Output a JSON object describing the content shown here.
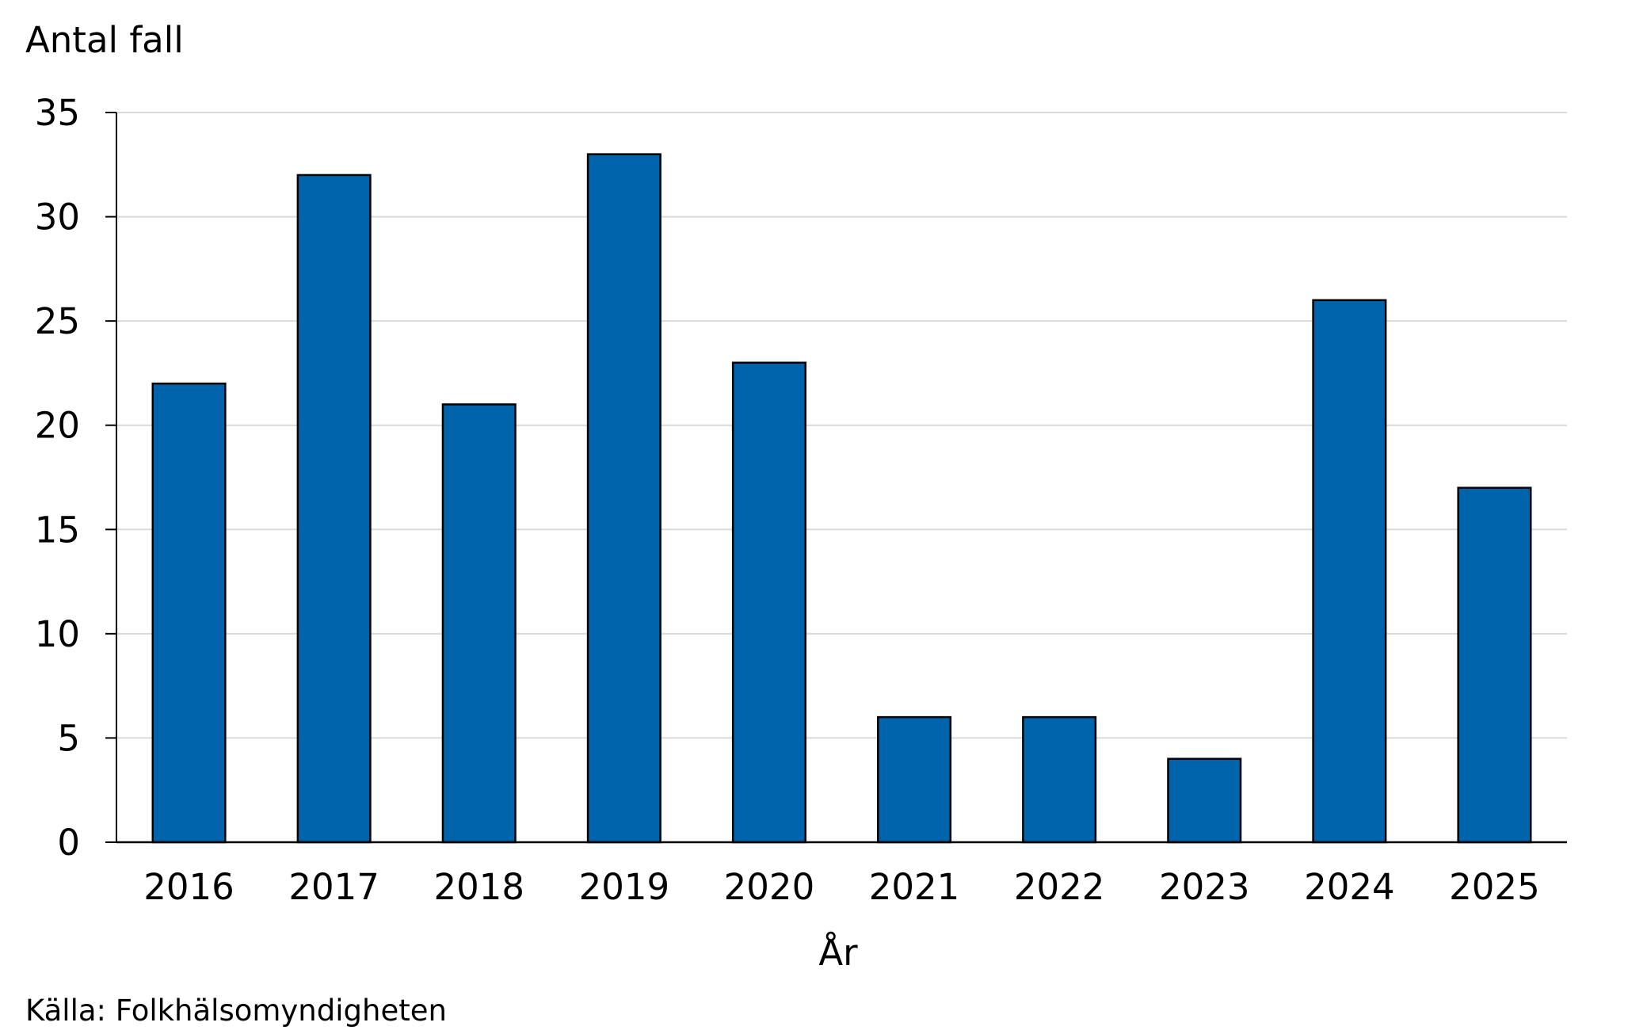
{
  "chart_data": {
    "type": "bar",
    "categories": [
      "2016",
      "2017",
      "2018",
      "2019",
      "2020",
      "2021",
      "2022",
      "2023",
      "2024",
      "2025"
    ],
    "values": [
      22,
      32,
      21,
      33,
      23,
      6,
      6,
      4,
      26,
      17
    ],
    "ylabel": "Antal fall",
    "xlabel": "År",
    "ylim": [
      0,
      35
    ],
    "yticks": [
      "0",
      "5",
      "10",
      "15",
      "20",
      "25",
      "30",
      "35"
    ],
    "grid": true,
    "legend": "none",
    "bar_color": "#0064AD",
    "bar_edge_color": "#000000",
    "grid_color": "#D9D9D9"
  },
  "source": "Källa: Folkhälsomyndigheten"
}
